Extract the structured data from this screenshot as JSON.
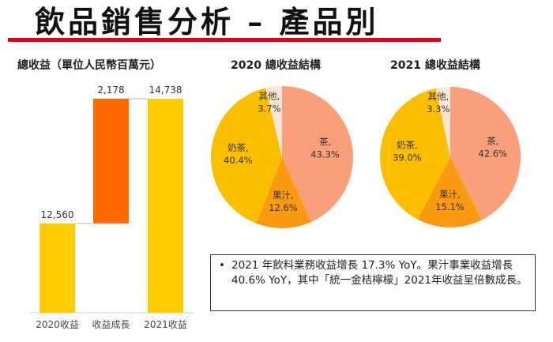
{
  "title": "飲品銷售分析 – 產品別",
  "chart_data": [
    {
      "type": "bar",
      "subtype": "waterfall",
      "title": "總收益（單位人民幣百萬元）",
      "categories": [
        "2020收益",
        "收益成長",
        "2021收益"
      ],
      "values": [
        12560,
        2178,
        14738
      ],
      "data_labels": [
        "12,560",
        "2,178",
        "14,738"
      ],
      "colors": [
        "#FFCC00",
        "#FF6A00",
        "#FFCC00"
      ],
      "ylim": [
        11000,
        14738
      ],
      "grid": false
    },
    {
      "type": "pie",
      "title": "2020 總收益結構",
      "categories": [
        "茶",
        "果汁",
        "奶茶",
        "其他"
      ],
      "values": [
        43.3,
        12.6,
        40.4,
        3.7
      ],
      "data_labels": [
        "43.3%",
        "12.6%",
        "40.4%",
        "3.7%"
      ],
      "colors": [
        "#F9A07A",
        "#FA9A10",
        "#FBBF00",
        "#FBE6D5"
      ]
    },
    {
      "type": "pie",
      "title": "2021 總收益結構",
      "categories": [
        "茶",
        "果汁",
        "奶茶",
        "其他"
      ],
      "values": [
        42.6,
        15.1,
        39.0,
        3.3
      ],
      "data_labels": [
        "42.6%",
        "15.1%",
        "39.0%",
        "3.3%"
      ],
      "colors": [
        "#F9A07A",
        "#FA9A10",
        "#FBBF00",
        "#FBE6D5"
      ]
    }
  ],
  "note": {
    "bullet": "•",
    "text": "2021 年飲料業務收益增長 17.3% YoY。果汁事業收益增長40.6% YoY，其中「統一金桔檸檬」2021年收益呈倍數成長。"
  }
}
